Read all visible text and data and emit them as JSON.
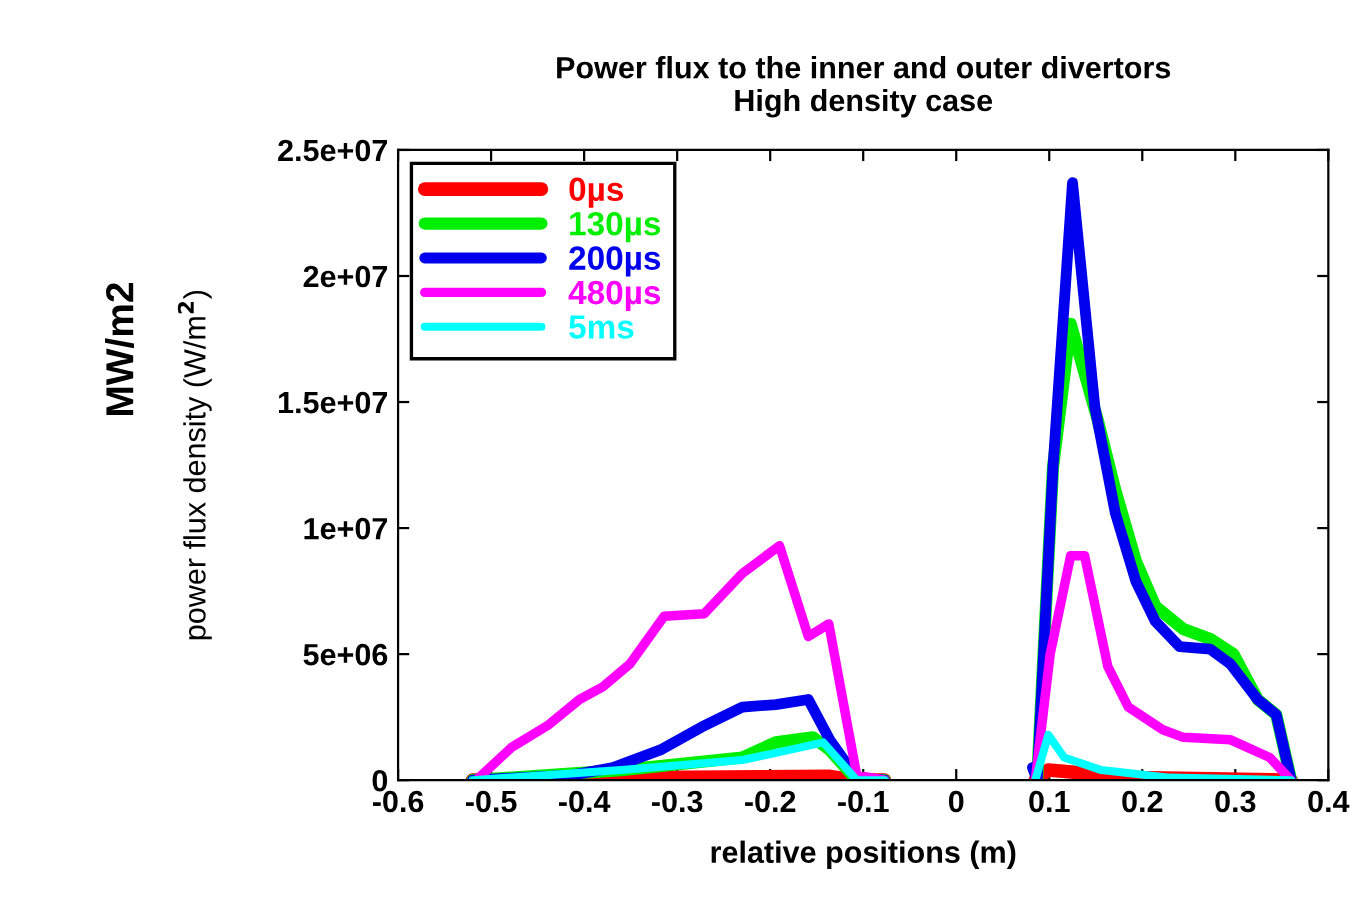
{
  "chart_data": {
    "type": "line",
    "title": "Power flux to the inner and outer divertors\nHigh density case",
    "xlabel": "relative positions (m)",
    "ylabel": "power flux density (W/m$^{2}$)",
    "annotations": [
      "MW/m2"
    ],
    "xlim": [
      -0.6,
      0.4
    ],
    "xticks": [
      -0.6,
      -0.5,
      -0.4,
      -0.3,
      -0.2,
      -0.1,
      0,
      0.1,
      0.2,
      0.3,
      0.4
    ],
    "ylim": [
      0,
      25000000
    ],
    "yticks": [
      {
        "value": 0,
        "label": "0"
      },
      {
        "value": 5000000,
        "label": "5e+06"
      },
      {
        "value": 10000000,
        "label": "1e+07"
      },
      {
        "value": 15000000,
        "label": "1.5e+07"
      },
      {
        "value": 20000000,
        "label": "2e+07"
      },
      {
        "value": 25000000,
        "label": "2.5e+07"
      }
    ],
    "grid": false,
    "legend": "top left",
    "marker": "none",
    "line_style": "solid",
    "series": [
      {
        "name": "0µs",
        "color": "#ff0000",
        "x": [
          -0.52,
          -0.33,
          -0.136,
          -0.107,
          -0.077,
          null,
          0.085,
          0.099,
          0.193,
          0.36
        ],
        "values": [
          0,
          100000,
          150000,
          0,
          0,
          null,
          0,
          400000,
          100000,
          0
        ]
      },
      {
        "name": "130µs",
        "color": "#00ee00",
        "x": [
          -0.52,
          -0.36,
          -0.23,
          -0.194,
          -0.154,
          -0.136,
          -0.107,
          -0.077,
          null,
          0.087,
          0.104,
          0.123,
          0.152,
          0.171,
          0.193,
          0.214,
          0.244,
          0.273,
          0.298,
          0.324,
          0.344,
          0.36
        ],
        "values": [
          0,
          400000,
          900000,
          1500000,
          1700000,
          1200000,
          0,
          0,
          null,
          0,
          12400000,
          18100000,
          14300000,
          11500000,
          8700000,
          6900000,
          6000000,
          5600000,
          5000000,
          3200000,
          2600000,
          0
        ]
      },
      {
        "name": "200µs",
        "color": "#0000ee",
        "x": [
          -0.52,
          -0.413,
          -0.369,
          -0.318,
          -0.274,
          -0.23,
          -0.194,
          -0.159,
          -0.136,
          -0.107,
          -0.077,
          null,
          0.082,
          0.087,
          0.104,
          0.125,
          0.149,
          0.171,
          0.193,
          0.214,
          0.24,
          0.273,
          0.295,
          0.324,
          0.344,
          0.36
        ],
        "values": [
          0,
          200000,
          500000,
          1200000,
          2100000,
          2900000,
          3000000,
          3200000,
          1600000,
          100000,
          0,
          null,
          500000,
          0,
          12400000,
          23700000,
          14800000,
          10600000,
          7900000,
          6300000,
          5300000,
          5200000,
          4600000,
          3200000,
          2600000,
          0
        ]
      },
      {
        "name": "480µs",
        "color": "#ff00ff",
        "x": [
          -0.516,
          -0.478,
          -0.438,
          -0.405,
          -0.38,
          -0.351,
          -0.314,
          -0.271,
          -0.23,
          -0.19,
          -0.159,
          -0.137,
          -0.107,
          -0.077,
          null,
          0.085,
          0.101,
          0.123,
          0.138,
          0.163,
          0.185,
          0.222,
          0.244,
          0.295,
          0.337,
          0.36
        ],
        "values": [
          0,
          1300000,
          2200000,
          3200000,
          3700000,
          4600000,
          6500000,
          6600000,
          8200000,
          9300000,
          5700000,
          6200000,
          200000,
          0,
          null,
          0,
          5000000,
          8900000,
          8900000,
          4500000,
          2900000,
          2000000,
          1700000,
          1600000,
          900000,
          0
        ]
      },
      {
        "name": "5ms",
        "color": "#00ffff",
        "x": [
          -0.52,
          -0.36,
          -0.23,
          -0.179,
          -0.143,
          -0.107,
          -0.077,
          null,
          0.085,
          0.099,
          0.116,
          0.156,
          0.229,
          0.36
        ],
        "values": [
          0,
          400000,
          800000,
          1200000,
          1500000,
          0,
          0,
          null,
          0,
          1800000,
          900000,
          400000,
          100000,
          0
        ]
      }
    ]
  }
}
